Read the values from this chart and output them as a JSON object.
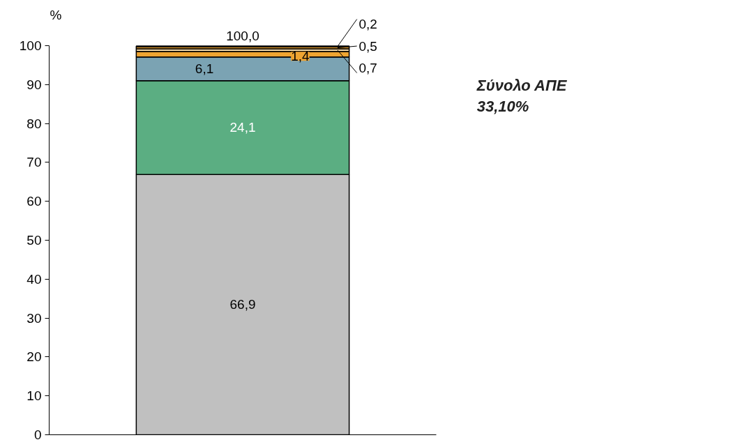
{
  "chart_data": {
    "type": "bar",
    "stacked": true,
    "categories": [
      null
    ],
    "ylabel": "%",
    "series": [
      {
        "color": "#c0c0c0",
        "values": [
          66.9
        ],
        "value_labels": [
          "66,9"
        ]
      },
      {
        "color": "#5bae82",
        "values": [
          24.1
        ],
        "value_labels": [
          "24,1"
        ]
      },
      {
        "color": "#7ba3b3",
        "values": [
          6.1
        ],
        "value_labels": [
          "6,1"
        ]
      },
      {
        "color": "#eea431",
        "values": [
          1.4
        ],
        "value_labels": [
          "1,4"
        ]
      },
      {
        "color": "#f3d8a6",
        "values": [
          0.7
        ],
        "value_labels": [
          "0,7"
        ]
      },
      {
        "color": "#eea431",
        "values": [
          0.5
        ],
        "value_labels": [
          "0,5"
        ]
      },
      {
        "color": "#000000",
        "values": [
          0.2
        ],
        "value_labels": [
          "0,2"
        ]
      }
    ],
    "totals": [
      "100,0"
    ],
    "ylim": [
      0,
      100
    ],
    "yticks": [
      0,
      10,
      20,
      30,
      40,
      50,
      60,
      70,
      80,
      90,
      100
    ],
    "grid": false,
    "annotations": [
      "Σύνολο ΑΠΕ\n33,10%"
    ]
  }
}
